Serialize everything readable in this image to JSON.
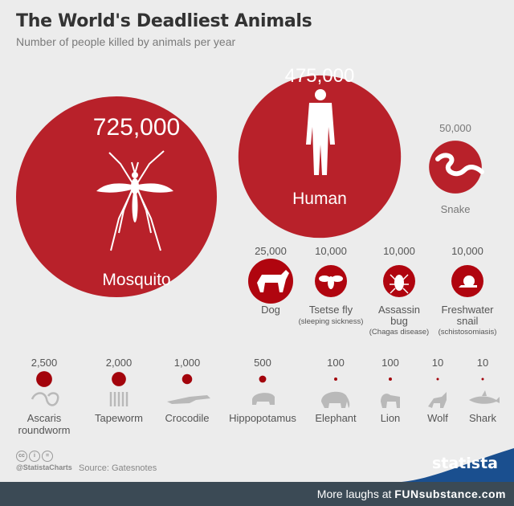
{
  "header": {
    "title": "The World's Deadliest Animals",
    "subtitle": "Number of people killed by animals per year"
  },
  "footer": {
    "handle": "@StatistaCharts",
    "source": "Source: Gatesnotes",
    "brand": "statista",
    "watermark_prefix": "More laughs at ",
    "watermark_brand": "FUNsubstance.com"
  },
  "colors": {
    "bubble": "#b0050f",
    "small_dot": "#a3040c",
    "icon_gray": "#b9b9b9",
    "footer_bar": "#3b4a55",
    "statista_wave": "#1a4f8f"
  },
  "chart_data": {
    "type": "bubble",
    "title": "The World's Deadliest Animals",
    "subtitle": "Number of people killed by animals per year",
    "unit": "people killed per year",
    "series": [
      {
        "animal": "Mosquito",
        "value": 725000,
        "label": "725,000",
        "icon": "mosquito-icon"
      },
      {
        "animal": "Human",
        "value": 475000,
        "label": "475,000",
        "icon": "human-icon"
      },
      {
        "animal": "Snake",
        "value": 50000,
        "label": "50,000",
        "icon": "snake-icon"
      },
      {
        "animal": "Dog",
        "value": 25000,
        "label": "25,000",
        "icon": "dog-icon"
      },
      {
        "animal": "Tsetse fly",
        "note": "(sleeping sickness)",
        "value": 10000,
        "label": "10,000",
        "icon": "fly-icon"
      },
      {
        "animal": "Assassin bug",
        "note": "(Chagas disease)",
        "value": 10000,
        "label": "10,000",
        "icon": "bug-icon"
      },
      {
        "animal": "Freshwater snail",
        "note": "(schistosomiasis)",
        "value": 10000,
        "label": "10,000",
        "icon": "snail-icon"
      },
      {
        "animal": "Ascaris roundworm",
        "value": 2500,
        "label": "2,500",
        "icon": "roundworm-icon"
      },
      {
        "animal": "Tapeworm",
        "value": 2000,
        "label": "2,000",
        "icon": "tapeworm-icon"
      },
      {
        "animal": "Crocodile",
        "value": 1000,
        "label": "1,000",
        "icon": "crocodile-icon"
      },
      {
        "animal": "Hippopotamus",
        "value": 500,
        "label": "500",
        "icon": "hippo-icon"
      },
      {
        "animal": "Elephant",
        "value": 100,
        "label": "100",
        "icon": "elephant-icon"
      },
      {
        "animal": "Lion",
        "value": 100,
        "label": "100",
        "icon": "lion-icon"
      },
      {
        "animal": "Wolf",
        "value": 10,
        "label": "10",
        "icon": "wolf-icon"
      },
      {
        "animal": "Shark",
        "value": 10,
        "label": "10",
        "icon": "shark-icon"
      }
    ]
  }
}
